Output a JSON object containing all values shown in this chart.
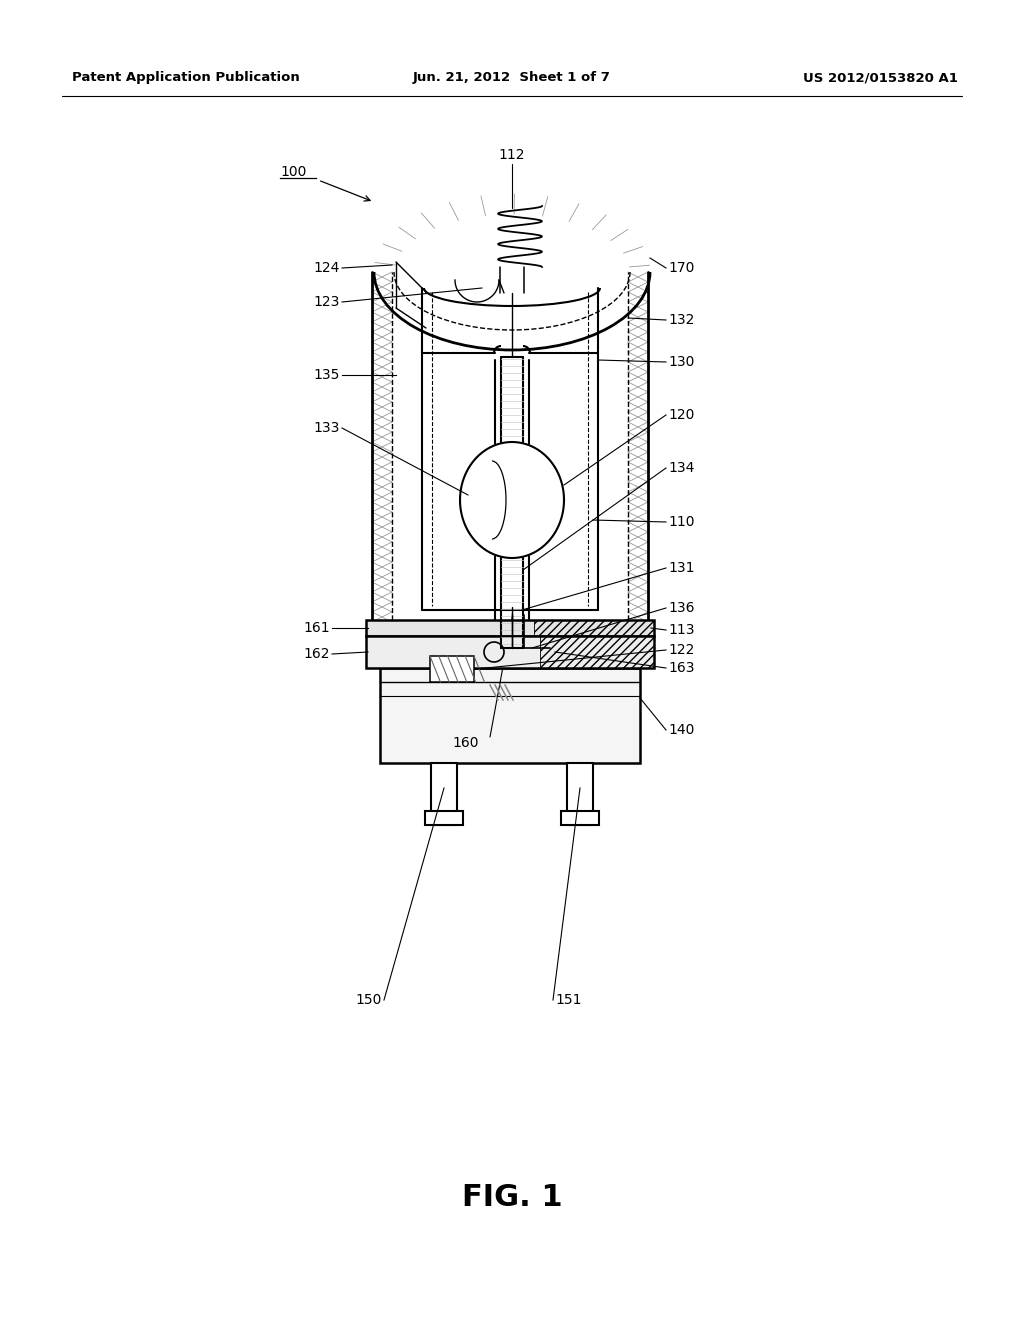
{
  "header_left": "Patent Application Publication",
  "header_mid": "Jun. 21, 2012  Sheet 1 of 7",
  "header_right": "US 2012/0153820 A1",
  "fig_label": "FIG. 1",
  "bg_color": "#ffffff",
  "line_color": "#000000"
}
